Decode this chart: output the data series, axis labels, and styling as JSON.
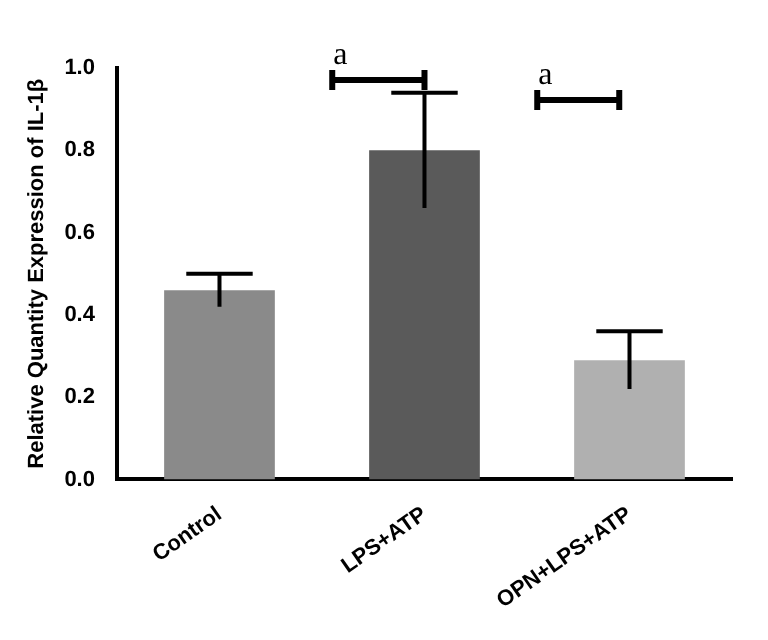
{
  "chart_data": {
    "type": "bar",
    "ylabel": "Relative Quantity Expression of IL-1β",
    "categories": [
      "Control",
      "LPS+ATP",
      "OPN+LPS+ATP"
    ],
    "values": [
      0.46,
      0.8,
      0.29
    ],
    "errors": [
      0.04,
      0.14,
      0.07
    ],
    "colors": [
      "#8a8a8a",
      "#5a5a5a",
      "#b0b0b0"
    ],
    "ylim": [
      0,
      1.0
    ],
    "yticks": [
      {
        "value": 0,
        "label": "0.0"
      },
      {
        "value": 0.2,
        "label": "0.2"
      },
      {
        "value": 0.4,
        "label": "0.4"
      },
      {
        "value": 0.6,
        "label": "0.6"
      },
      {
        "value": 0.8,
        "label": "0.8"
      },
      {
        "value": 1.0,
        "label": "1.0"
      }
    ],
    "annotations": [
      "a",
      "a"
    ],
    "grid": false,
    "legend": false
  }
}
